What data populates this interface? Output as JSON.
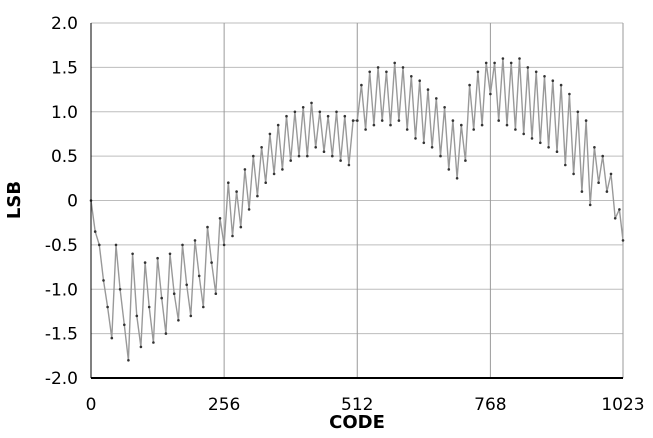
{
  "chart_data": {
    "type": "line",
    "xlabel": "CODE",
    "ylabel": "LSB",
    "xlim": [
      0,
      1023
    ],
    "ylim": [
      -2.0,
      2.0
    ],
    "x_ticks": [
      0,
      256,
      512,
      768,
      1023
    ],
    "x_tick_labels": [
      "0",
      "256",
      "512",
      "768",
      "1023"
    ],
    "y_ticks": [
      2.0,
      1.5,
      1.0,
      0.5,
      0,
      -0.5,
      -1.0,
      -1.5,
      -2.0
    ],
    "y_tick_labels": [
      "2.0",
      "1.5",
      "1.0",
      "0.5",
      "0",
      "-0.5",
      "-1.0",
      "-1.5",
      "-2.0"
    ],
    "grid": {
      "horizontal": true,
      "vertical": true
    },
    "series": [
      {
        "color": "#999999",
        "x": [
          0,
          8,
          16,
          24,
          32,
          40,
          48,
          56,
          64,
          72,
          80,
          88,
          96,
          104,
          112,
          120,
          128,
          136,
          144,
          152,
          160,
          168,
          176,
          184,
          192,
          200,
          208,
          216,
          224,
          232,
          240,
          248,
          256,
          264,
          272,
          280,
          288,
          296,
          304,
          312,
          320,
          328,
          336,
          344,
          352,
          360,
          368,
          376,
          384,
          392,
          400,
          408,
          416,
          424,
          432,
          440,
          448,
          456,
          464,
          472,
          480,
          488,
          496,
          504,
          512,
          520,
          528,
          536,
          544,
          552,
          560,
          568,
          576,
          584,
          592,
          600,
          608,
          616,
          624,
          632,
          640,
          648,
          656,
          664,
          672,
          680,
          688,
          696,
          704,
          712,
          720,
          728,
          736,
          744,
          752,
          760,
          768,
          776,
          784,
          792,
          800,
          808,
          816,
          824,
          832,
          840,
          848,
          856,
          864,
          872,
          880,
          888,
          896,
          904,
          912,
          920,
          928,
          936,
          944,
          952,
          960,
          968,
          976,
          984,
          992,
          1000,
          1008,
          1016,
          1023
        ],
        "y": [
          0.0,
          -0.35,
          -0.5,
          -0.9,
          -1.2,
          -1.55,
          -0.5,
          -1.0,
          -1.4,
          -1.8,
          -0.6,
          -1.3,
          -1.65,
          -0.7,
          -1.2,
          -1.6,
          -0.65,
          -1.1,
          -1.5,
          -0.6,
          -1.05,
          -1.35,
          -0.5,
          -0.95,
          -1.3,
          -0.45,
          -0.85,
          -1.2,
          -0.3,
          -0.7,
          -1.05,
          -0.2,
          -0.5,
          0.2,
          -0.4,
          0.1,
          -0.3,
          0.35,
          -0.1,
          0.5,
          0.05,
          0.6,
          0.2,
          0.75,
          0.3,
          0.85,
          0.35,
          0.95,
          0.45,
          1.0,
          0.5,
          1.05,
          0.5,
          1.1,
          0.6,
          1.0,
          0.55,
          0.95,
          0.5,
          1.0,
          0.45,
          0.95,
          0.4,
          0.9,
          0.9,
          1.3,
          0.8,
          1.45,
          0.85,
          1.5,
          0.9,
          1.45,
          0.85,
          1.55,
          0.9,
          1.5,
          0.8,
          1.4,
          0.7,
          1.35,
          0.65,
          1.25,
          0.6,
          1.15,
          0.5,
          1.05,
          0.35,
          0.9,
          0.25,
          0.85,
          0.45,
          1.3,
          0.8,
          1.45,
          0.85,
          1.55,
          1.2,
          1.55,
          0.9,
          1.6,
          0.85,
          1.55,
          0.8,
          1.6,
          0.75,
          1.5,
          0.7,
          1.45,
          0.65,
          1.4,
          0.6,
          1.35,
          0.55,
          1.3,
          0.4,
          1.2,
          0.3,
          1.0,
          0.1,
          0.9,
          -0.05,
          0.6,
          0.2,
          0.5,
          0.1,
          0.3,
          -0.2,
          -0.1,
          -0.45
        ]
      }
    ]
  }
}
